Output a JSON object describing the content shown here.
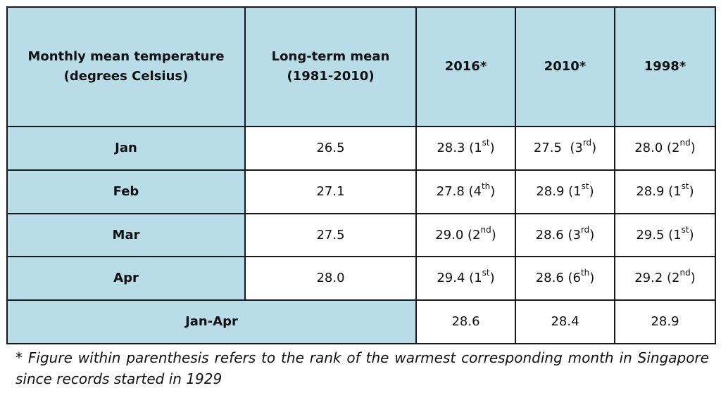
{
  "table": {
    "headers": [
      [
        "Monthly mean temperature",
        "(degrees Celsius)"
      ],
      [
        "Long-term mean",
        "(1981-2010)"
      ],
      [
        "2016*"
      ],
      [
        "2010*"
      ],
      [
        "1998*"
      ]
    ],
    "rows": [
      {
        "label": "Jan",
        "ltm": "26.5",
        "y2016": {
          "v": "28.3",
          "n": "1",
          "s": "st"
        },
        "y2010": {
          "v": "27.5",
          "n": "3",
          "s": "rd",
          "double_space": true
        },
        "y1998": {
          "v": "28.0",
          "n": "2",
          "s": "nd"
        }
      },
      {
        "label": "Feb",
        "ltm": "27.1",
        "y2016": {
          "v": "27.8",
          "n": "4",
          "s": "th"
        },
        "y2010": {
          "v": "28.9",
          "n": "1",
          "s": "st"
        },
        "y1998": {
          "v": "28.9",
          "n": "1",
          "s": "st"
        }
      },
      {
        "label": "Mar",
        "ltm": "27.5",
        "y2016": {
          "v": "29.0",
          "n": "2",
          "s": "nd"
        },
        "y2010": {
          "v": "28.6",
          "n": "3",
          "s": "rd"
        },
        "y1998": {
          "v": "29.5",
          "n": "1",
          "s": "st"
        }
      },
      {
        "label": "Apr",
        "ltm": "28.0",
        "y2016": {
          "v": "29.4",
          "n": "1",
          "s": "st"
        },
        "y2010": {
          "v": "28.6",
          "n": "6",
          "s": "th"
        },
        "y1998": {
          "v": "29.2",
          "n": "2",
          "s": "nd"
        }
      }
    ],
    "summary": {
      "label": "Jan-Apr",
      "y2016": "28.6",
      "y2010": "28.4",
      "y1998": "28.9"
    }
  },
  "footnote": "* Figure within parenthesis refers to the rank of the warmest corresponding month in Singapore since records started in 1929",
  "colors": {
    "header_fill": "#b8dde8",
    "border": "#1a1a1a"
  }
}
